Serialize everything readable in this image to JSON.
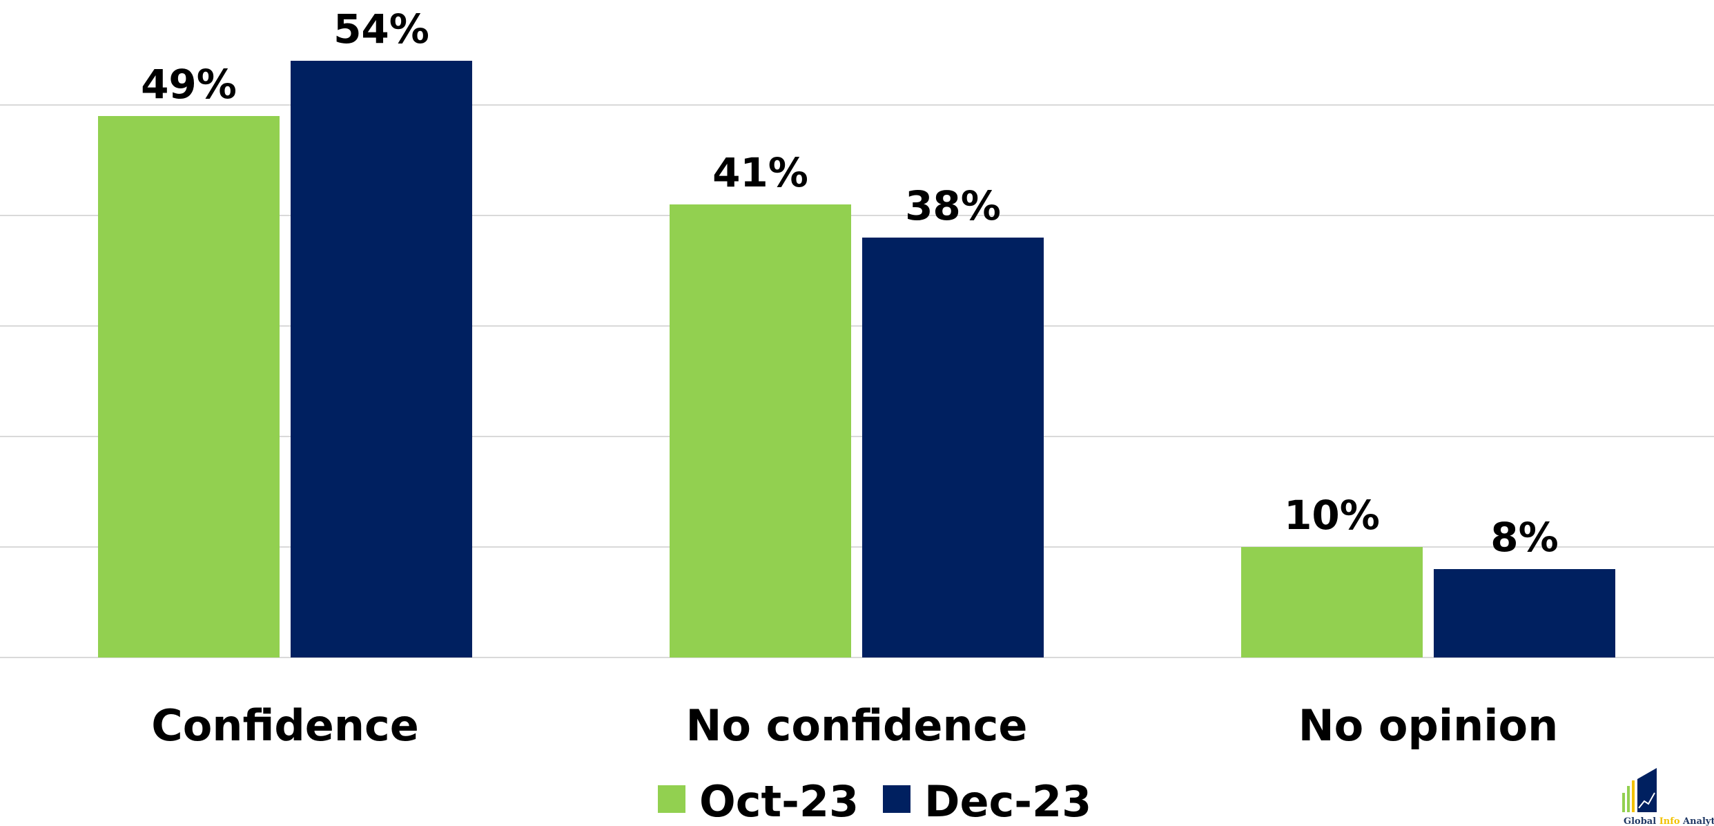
{
  "chart_data": {
    "type": "bar",
    "categories": [
      "Confidence",
      "No confidence",
      "No opinion"
    ],
    "series": [
      {
        "name": "Oct-23",
        "values": [
          49,
          41,
          10
        ],
        "labels": [
          "49%",
          "41%",
          "10%"
        ],
        "color": "#92d050"
      },
      {
        "name": "Dec-23",
        "values": [
          54,
          38,
          8
        ],
        "labels": [
          "54%",
          "38%",
          "8%"
        ],
        "color": "#002060"
      }
    ],
    "value_unit": "%",
    "ylim": [
      0,
      60
    ],
    "y_gridline_step": 10,
    "y_tick_labels_visible": false,
    "grid": true,
    "legend_position": "bottom-center",
    "title": "",
    "xlabel": "",
    "ylabel": ""
  },
  "logo": {
    "text_prefix": "Global",
    "text_mid": "Info",
    "text_suffix": "Analytics"
  }
}
